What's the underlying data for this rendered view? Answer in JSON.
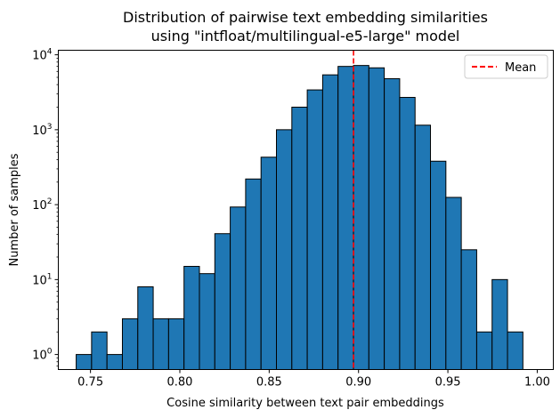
{
  "chart_data": {
    "type": "bar",
    "title": "Distribution of pairwise text embedding similarities",
    "subtitle": "using \"intfloat/multilingual-e5-large\" model",
    "xlabel": "Cosine similarity between text pair embeddings",
    "ylabel": "Number of samples",
    "yscale": "log",
    "xlim": [
      0.732,
      1.009
    ],
    "ylim": [
      0.63,
      11500
    ],
    "x_ticks": [
      0.75,
      0.8,
      0.85,
      0.9,
      0.95,
      1.0
    ],
    "x_tick_labels": [
      "0.75",
      "0.80",
      "0.85",
      "0.90",
      "0.95",
      "1.00"
    ],
    "y_ticks": [
      1,
      10,
      100,
      1000,
      10000
    ],
    "y_tick_labels": [
      {
        "base": "10",
        "exp": "0"
      },
      {
        "base": "10",
        "exp": "1"
      },
      {
        "base": "10",
        "exp": "2"
      },
      {
        "base": "10",
        "exp": "3"
      },
      {
        "base": "10",
        "exp": "4"
      }
    ],
    "bin_start": 0.742,
    "bin_width": 0.00862,
    "values": [
      1,
      2,
      1,
      3,
      8,
      3,
      3,
      15,
      12,
      41,
      93,
      220,
      430,
      1000,
      2000,
      3400,
      5400,
      7000,
      7200,
      6700,
      4800,
      2700,
      1150,
      380,
      125,
      25,
      2,
      10,
      2
    ],
    "mean": 0.8972,
    "bar_color": "#1f77b4",
    "edge_color": "#000000",
    "mean_color": "#ff0000",
    "legend": {
      "label": "Mean",
      "position": "upper right"
    }
  }
}
